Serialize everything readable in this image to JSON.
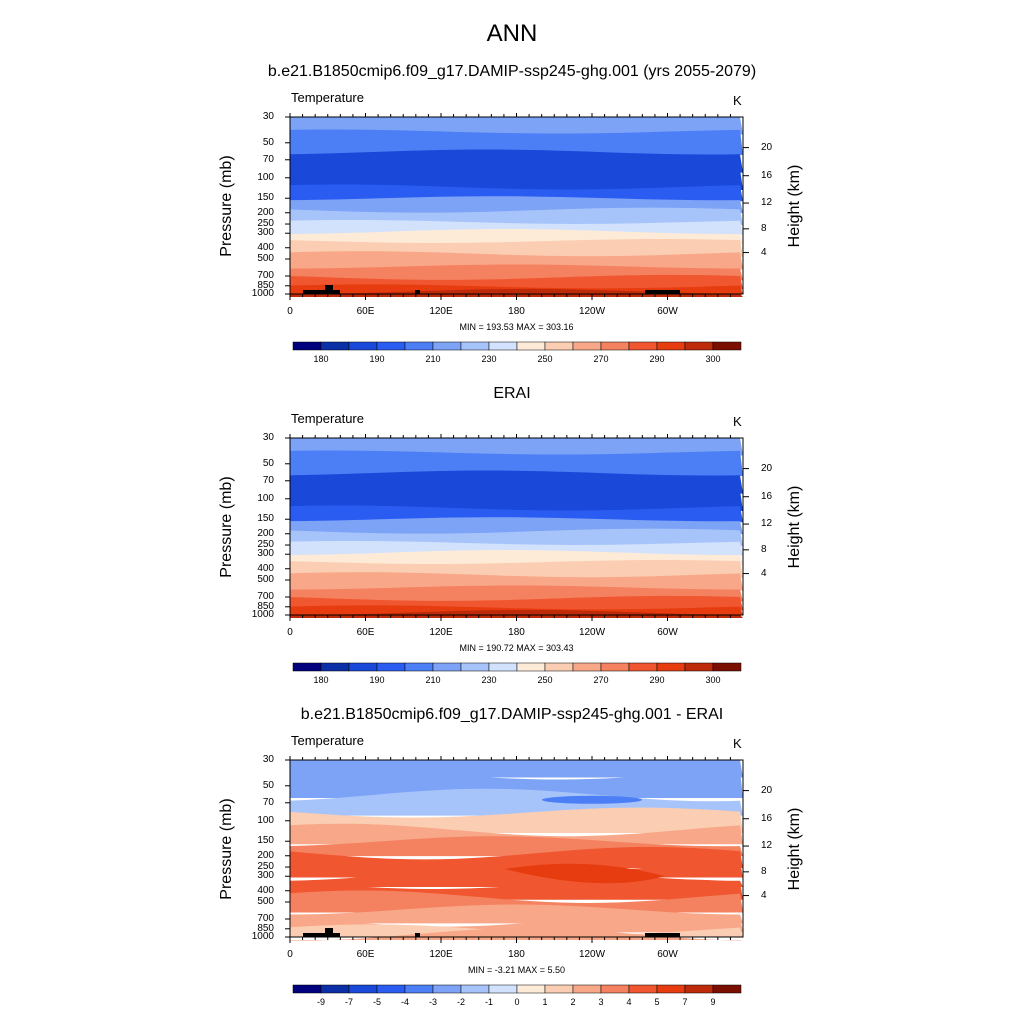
{
  "figure": {
    "title": "ANN"
  },
  "chart_data": [
    {
      "type": "heatmap",
      "title": "b.e21.B1850cmip6.f09_g17.DAMIP-ssp245-ghg.001 (yrs 2055-2079)",
      "variable": "Temperature",
      "units": "K",
      "ylabel": "Pressure (mb)",
      "y2label": "Height (km)",
      "x_ticks": [
        "0",
        "60E",
        "120E",
        "180",
        "120W",
        "60W"
      ],
      "y_ticks": [
        "30",
        "50",
        "70",
        "100",
        "150",
        "200",
        "250",
        "300",
        "400",
        "500",
        "700",
        "850",
        "1000"
      ],
      "height_ticks": [
        "20",
        "16",
        "12",
        "8",
        "4"
      ],
      "stats": "MIN = 193.53  MAX = 303.16",
      "min": 193.53,
      "max": 303.16,
      "levels": [
        "180",
        "190",
        "210",
        "230",
        "250",
        "270",
        "290",
        "300"
      ],
      "palette": [
        "#00007f",
        "#0a2fa6",
        "#1a49d9",
        "#2b5cf2",
        "#4c7ff5",
        "#7da3f7",
        "#a7c4fa",
        "#d2e2fc",
        "#fdebd8",
        "#fbcdb2",
        "#f8a789",
        "#f4815f",
        "#f0562f",
        "#e63c0f",
        "#be2b0a",
        "#7a0f00"
      ],
      "bands": [
        "#7da3f7",
        "#4c7ff5",
        "#1a49d9",
        "#1a49d9",
        "#2b5cf2",
        "#7da3f7",
        "#a7c4fa",
        "#d2e2fc",
        "#fdebd8",
        "#fbcdb2",
        "#f8a789",
        "#f4815f",
        "#f0562f",
        "#e63c0f",
        "#be2b0a"
      ]
    },
    {
      "type": "heatmap",
      "title": "ERAI",
      "variable": "Temperature",
      "units": "K",
      "ylabel": "Pressure (mb)",
      "y2label": "Height (km)",
      "x_ticks": [
        "0",
        "60E",
        "120E",
        "180",
        "120W",
        "60W"
      ],
      "y_ticks": [
        "30",
        "50",
        "70",
        "100",
        "150",
        "200",
        "250",
        "300",
        "400",
        "500",
        "700",
        "850",
        "1000"
      ],
      "height_ticks": [
        "20",
        "16",
        "12",
        "8",
        "4"
      ],
      "stats": "MIN = 190.72  MAX = 303.43",
      "min": 190.72,
      "max": 303.43,
      "levels": [
        "180",
        "190",
        "210",
        "230",
        "250",
        "270",
        "290",
        "300"
      ],
      "palette": [
        "#00007f",
        "#0a2fa6",
        "#1a49d9",
        "#2b5cf2",
        "#4c7ff5",
        "#7da3f7",
        "#a7c4fa",
        "#d2e2fc",
        "#fdebd8",
        "#fbcdb2",
        "#f8a789",
        "#f4815f",
        "#f0562f",
        "#e63c0f",
        "#be2b0a",
        "#7a0f00"
      ],
      "bands": [
        "#7da3f7",
        "#4c7ff5",
        "#1a49d9",
        "#1a49d9",
        "#2b5cf2",
        "#7da3f7",
        "#a7c4fa",
        "#d2e2fc",
        "#fdebd8",
        "#fbcdb2",
        "#f8a789",
        "#f4815f",
        "#f0562f",
        "#e63c0f",
        "#be2b0a"
      ]
    },
    {
      "type": "heatmap",
      "title": "b.e21.B1850cmip6.f09_g17.DAMIP-ssp245-ghg.001 - ERAI",
      "variable": "Temperature",
      "units": "K",
      "ylabel": "Pressure (mb)",
      "y2label": "Height (km)",
      "x_ticks": [
        "0",
        "60E",
        "120E",
        "180",
        "120W",
        "60W"
      ],
      "y_ticks": [
        "30",
        "50",
        "70",
        "100",
        "150",
        "200",
        "250",
        "300",
        "400",
        "500",
        "700",
        "850",
        "1000"
      ],
      "height_ticks": [
        "20",
        "16",
        "12",
        "8",
        "4"
      ],
      "stats": "MIN = -3.21  MAX =   5.50",
      "min": -3.21,
      "max": 5.5,
      "levels": [
        "-9",
        "-7",
        "-5",
        "-4",
        "-3",
        "-2",
        "-1",
        "0",
        "1",
        "2",
        "3",
        "4",
        "5",
        "7",
        "9"
      ],
      "palette": [
        "#00007f",
        "#0a2fa6",
        "#1a49d9",
        "#2b5cf2",
        "#4c7ff5",
        "#7da3f7",
        "#a7c4fa",
        "#d2e2fc",
        "#fdebd8",
        "#fbcdb2",
        "#f8a789",
        "#f4815f",
        "#f0562f",
        "#e63c0f",
        "#be2b0a",
        "#7a0f00"
      ],
      "bands": [
        "#7da3f7",
        "#7da3f7",
        "#a7c4fa",
        "#fbcdb2",
        "#f8a789",
        "#f4815f",
        "#f0562f",
        "#f0562f",
        "#f0562f",
        "#f0562f",
        "#f4815f",
        "#f8a789",
        "#f8a789",
        "#fbcdb2",
        "#f8a789"
      ]
    }
  ]
}
